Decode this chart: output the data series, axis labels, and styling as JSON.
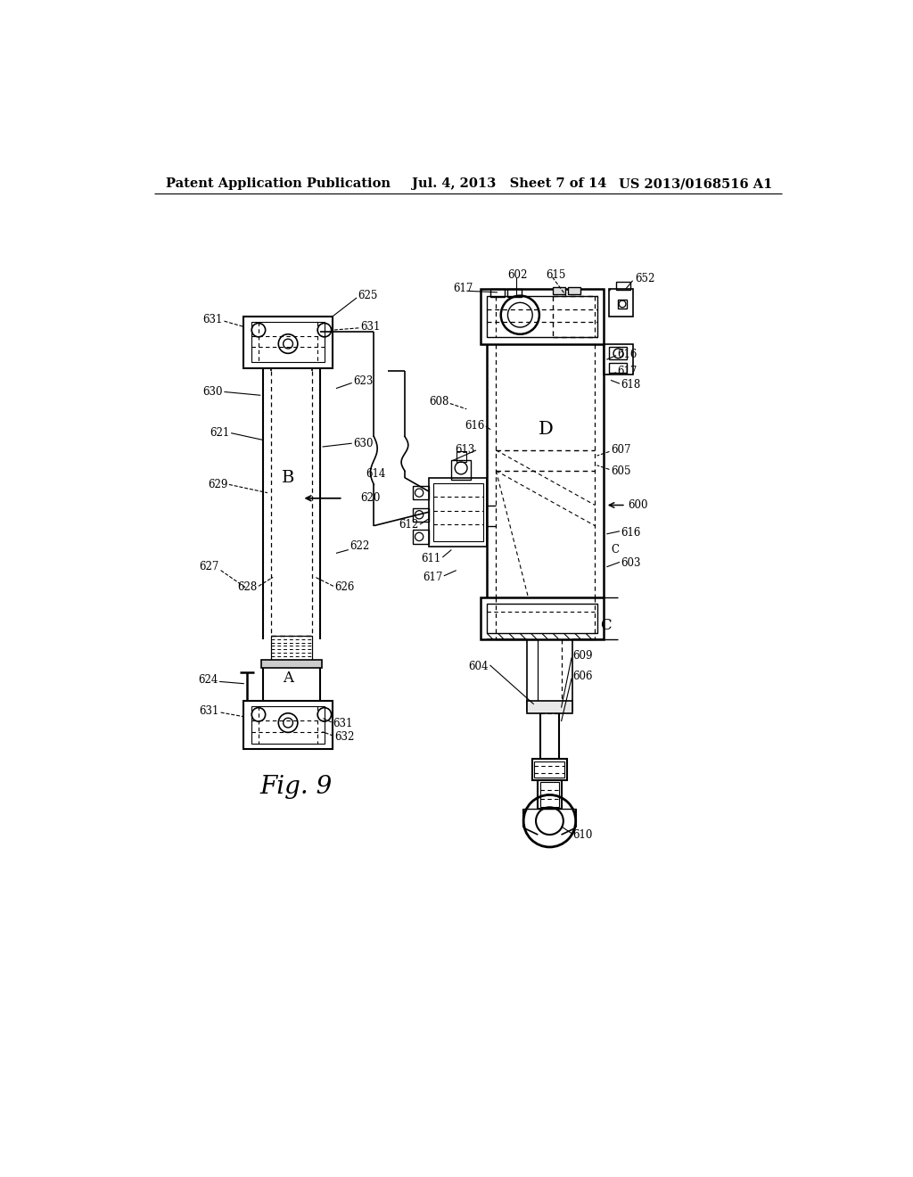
{
  "background_color": "#ffffff",
  "header_left": "Patent Application Publication",
  "header_center": "Jul. 4, 2013   Sheet 7 of 14",
  "header_right": "US 2013/0168516 A1",
  "fig_label": "Fig. 9",
  "header_fontsize": 10.5,
  "fig_label_fontsize": 20
}
